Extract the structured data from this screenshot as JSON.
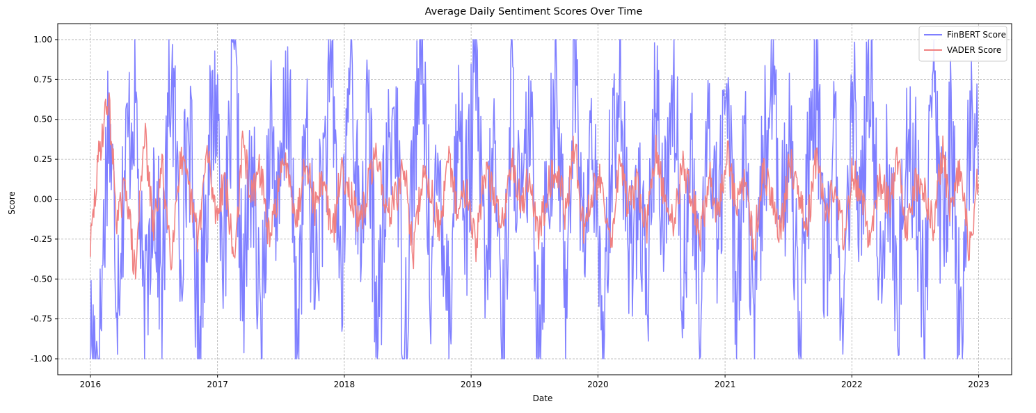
{
  "chart_data": {
    "type": "line",
    "title": "Average Daily Sentiment Scores Over Time",
    "xlabel": "Date",
    "ylabel": "Score",
    "xlim": [
      "2015-09-29",
      "2023-04-06"
    ],
    "ylim": [
      -1.1,
      1.1
    ],
    "grid": true,
    "legend_position": "top-right",
    "x_ticks": [
      "2016",
      "2017",
      "2018",
      "2019",
      "2020",
      "2021",
      "2022",
      "2023"
    ],
    "y_ticks": [
      "-1.00",
      "-0.75",
      "-0.50",
      "-0.25",
      "0.00",
      "0.25",
      "0.50",
      "0.75",
      "1.00"
    ],
    "x_start": "2016-01-01",
    "x_end": "2022-12-31",
    "frequency": "daily",
    "series": [
      {
        "name": "FinBERT Score",
        "color": "#7f7fff",
        "noise_seed": 17,
        "values": [
          -0.85,
          -1.0,
          0.6,
          -0.5,
          0.3,
          0.7,
          -0.9,
          0.2,
          -0.6,
          0.9,
          -0.3,
          0.5,
          -0.8,
          0.1,
          0.7,
          -0.4,
          0.95,
          -0.7,
          0.3,
          -1.0,
          0.6,
          -0.2,
          0.8,
          -0.9,
          0.4,
          -0.5,
          0.2,
          0.75,
          -0.6,
          1.0,
          -0.3,
          0.5,
          -0.85,
          0.1,
          0.65,
          -0.95,
          0.3,
          0.9,
          -0.45,
          0.2,
          -0.7,
          0.55,
          -0.1,
          0.85,
          -0.6,
          0.35,
          -0.9,
          0.7,
          -0.25,
          0.5,
          -0.8,
          0.15,
          0.6,
          -0.55,
          1.0,
          -0.35,
          0.45,
          -0.95,
          0.25,
          0.8,
          -0.4,
          0.1,
          -0.7,
          0.65,
          -0.15,
          0.9,
          -0.5,
          0.3,
          -0.85,
          0.55,
          -0.2,
          0.75,
          -0.6,
          0.4,
          -1.0,
          0.2,
          0.85,
          -0.3,
          0.5,
          -0.75,
          0.05,
          0.7,
          -0.5,
          0.35,
          -0.9,
          0.6,
          -0.1,
          0.95,
          -0.45,
          0.25,
          -0.8,
          0.5,
          0.15,
          -0.65,
          0.8,
          -0.3,
          0.45,
          -0.95,
          0.3,
          0.6
        ]
      },
      {
        "name": "VADER Score",
        "color": "#f08080",
        "noise_seed": 29,
        "values": [
          -0.3,
          0.3,
          0.65,
          -0.15,
          0.1,
          -0.5,
          0.45,
          -0.2,
          0.2,
          -0.35,
          0.25,
          0.05,
          -0.25,
          0.3,
          -0.1,
          0.15,
          -0.4,
          0.35,
          0.0,
          0.2,
          -0.3,
          0.1,
          0.25,
          -0.15,
          0.3,
          -0.05,
          0.15,
          -0.25,
          0.2,
          0.05,
          -0.2,
          0.1,
          0.3,
          -0.1,
          0.0,
          0.2,
          -0.35,
          0.15,
          0.05,
          -0.2,
          0.25,
          -0.1,
          0.1,
          -0.3,
          0.2,
          0.0,
          -0.15,
          0.3,
          -0.05,
          0.15,
          -0.25,
          0.1,
          0.2,
          -0.1,
          0.35,
          -0.2,
          0.05,
          0.15,
          -0.3,
          0.25,
          -0.05,
          0.1,
          -0.2,
          0.3,
          0.0,
          -0.15,
          0.2,
          0.05,
          -0.25,
          0.15,
          -0.1,
          0.3,
          -0.05,
          0.1,
          -0.3,
          0.2,
          0.0,
          -0.2,
          0.25,
          0.05,
          -0.15,
          0.3,
          -0.1,
          0.1,
          -0.25,
          0.2,
          0.0,
          -0.3,
          0.15,
          -0.05,
          0.25,
          -0.2,
          0.1,
          0.05,
          -0.15,
          0.3,
          -0.1,
          0.2,
          -0.35,
          0.15
        ]
      }
    ]
  }
}
